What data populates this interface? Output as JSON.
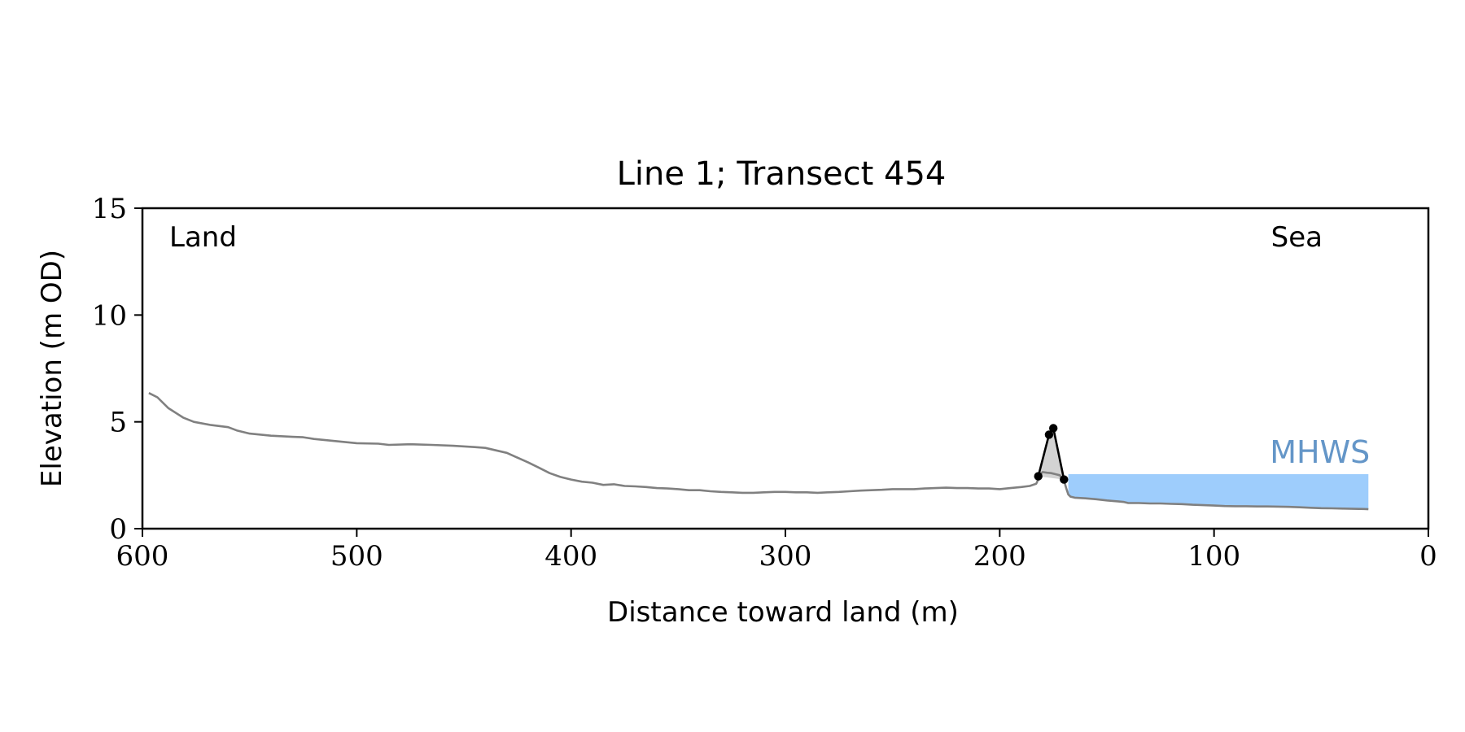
{
  "chart_data": {
    "type": "line",
    "title": "Line 1; Transect 454",
    "xlabel": "Distance toward land (m)",
    "ylabel": "Elevation (m OD)",
    "xlim": [
      600,
      0
    ],
    "ylim": [
      0,
      15
    ],
    "xticks": [
      600,
      500,
      400,
      300,
      200,
      100,
      0
    ],
    "yticks": [
      0,
      5,
      10,
      15
    ],
    "grid": false,
    "annotations": {
      "left": "Land",
      "right": "Sea",
      "mhws": "MHWS"
    },
    "mhws": {
      "level": 2.55,
      "x_start": 168,
      "x_end": 28
    },
    "profile": {
      "color": "#808080",
      "x": [
        597,
        593,
        588,
        581,
        576,
        568,
        560,
        556,
        550,
        540,
        530,
        525,
        520,
        510,
        500,
        490,
        485,
        475,
        465,
        455,
        445,
        440,
        430,
        420,
        415,
        410,
        405,
        400,
        395,
        390,
        385,
        380,
        375,
        370,
        365,
        360,
        355,
        350,
        345,
        340,
        335,
        330,
        325,
        320,
        315,
        310,
        305,
        300,
        295,
        290,
        285,
        280,
        275,
        270,
        265,
        260,
        255,
        250,
        245,
        240,
        235,
        230,
        225,
        220,
        215,
        210,
        205,
        200,
        195,
        190,
        186,
        183,
        182,
        181,
        180,
        178,
        176,
        174,
        172,
        170,
        169,
        168,
        167,
        165,
        160,
        155,
        150,
        145,
        142,
        140,
        135,
        130,
        125,
        120,
        115,
        110,
        105,
        100,
        95,
        90,
        85,
        80,
        75,
        70,
        65,
        60,
        55,
        50,
        45,
        40,
        35,
        30,
        28
      ],
      "y": [
        6.35,
        6.15,
        5.65,
        5.2,
        5.0,
        4.85,
        4.75,
        4.6,
        4.45,
        4.35,
        4.3,
        4.28,
        4.2,
        4.1,
        4.0,
        3.98,
        3.92,
        3.95,
        3.92,
        3.88,
        3.82,
        3.78,
        3.55,
        3.1,
        2.85,
        2.6,
        2.42,
        2.3,
        2.2,
        2.15,
        2.05,
        2.08,
        2.0,
        1.98,
        1.95,
        1.9,
        1.88,
        1.85,
        1.8,
        1.8,
        1.75,
        1.72,
        1.7,
        1.68,
        1.68,
        1.7,
        1.72,
        1.72,
        1.7,
        1.7,
        1.68,
        1.7,
        1.72,
        1.75,
        1.78,
        1.8,
        1.82,
        1.85,
        1.85,
        1.85,
        1.88,
        1.9,
        1.92,
        1.9,
        1.9,
        1.88,
        1.88,
        1.85,
        1.9,
        1.95,
        2.0,
        2.1,
        2.3,
        2.55,
        2.65,
        2.62,
        2.6,
        2.55,
        2.5,
        2.25,
        1.9,
        1.6,
        1.5,
        1.45,
        1.42,
        1.38,
        1.32,
        1.28,
        1.25,
        1.2,
        1.2,
        1.18,
        1.18,
        1.16,
        1.15,
        1.12,
        1.1,
        1.08,
        1.06,
        1.05,
        1.05,
        1.04,
        1.04,
        1.03,
        1.02,
        1.0,
        0.98,
        0.96,
        0.95,
        0.94,
        0.93,
        0.92,
        0.91
      ]
    },
    "dune": {
      "color": "#000000",
      "fill": "#d3d3d3",
      "points": [
        {
          "x": 182,
          "y": 2.45
        },
        {
          "x": 177,
          "y": 4.4
        },
        {
          "x": 175,
          "y": 4.7
        },
        {
          "x": 170,
          "y": 2.3
        }
      ]
    },
    "colors": {
      "mhws_fill": "#9ecdfc",
      "mhws_text": "#6496c8",
      "axis": "#000000"
    }
  }
}
